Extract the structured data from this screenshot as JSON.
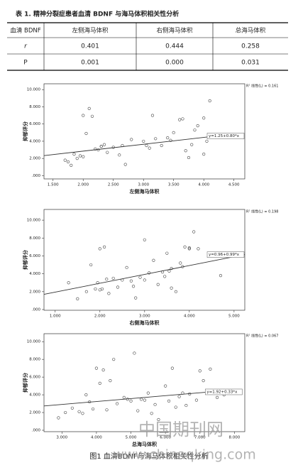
{
  "table": {
    "caption": "表 1. 精神分裂症患者血清 BDNF 与海马体积相关性分析",
    "header": [
      "血清 BDNF",
      "左侧海马体积",
      "右侧海马体积",
      "总海马体积"
    ],
    "rows": [
      [
        "r",
        "0.401",
        "0.444",
        "0.258"
      ],
      [
        "P",
        "0.001",
        "0.000",
        "0.031"
      ]
    ]
  },
  "chart_data": [
    {
      "type": "scatter",
      "ylabel": "抑郁评分",
      "xlabel": "左侧海马体积",
      "r2_label": "R² 线性(L) = 0.161",
      "fit_label": "y=1.25+0.80*x",
      "x": [
        1.8,
        1.9,
        2.0,
        2.0,
        2.1,
        1.7,
        1.85,
        2.2,
        2.3,
        2.35,
        2.4,
        2.5,
        2.6,
        2.65,
        2.7,
        2.8,
        3.0,
        3.1,
        3.15,
        3.2,
        3.3,
        3.4,
        3.5,
        3.6,
        3.7,
        3.75,
        3.8,
        3.9,
        4.0,
        4.05,
        4.1,
        1.95,
        2.05,
        2.15,
        2.3,
        3.05,
        3.45,
        3.65,
        3.85,
        4.0,
        1.75,
        2.25
      ],
      "y": [
        1.2,
        2.0,
        7.0,
        2.2,
        7.8,
        1.8,
        2.5,
        3.1,
        3.4,
        3.6,
        2.7,
        3.3,
        2.4,
        3.5,
        1.3,
        4.2,
        4.0,
        3.2,
        7.0,
        4.3,
        3.5,
        4.4,
        5.0,
        6.5,
        2.9,
        2.1,
        3.6,
        5.8,
        6.7,
        4.0,
        8.7,
        2.3,
        4.9,
        6.9,
        3.4,
        3.5,
        4.1,
        6.6,
        5.3,
        2.5,
        1.6,
        3.0
      ],
      "fit": {
        "x": [
          1.35,
          4.2
        ],
        "y": [
          2.33,
          4.61
        ]
      },
      "xlim": [
        1.35,
        4.68
      ],
      "ylim": [
        -0.38,
        10.68
      ],
      "xticks": [
        {
          "value": 1.5,
          "label": "1.500"
        },
        {
          "value": 2,
          "label": "2.000"
        },
        {
          "value": 2.5,
          "label": "2.500"
        },
        {
          "value": 3,
          "label": "3.000"
        },
        {
          "value": 3.5,
          "label": "3.500"
        },
        {
          "value": 4,
          "label": "4.000"
        },
        {
          "value": 4.5,
          "label": "4.500"
        }
      ],
      "yticks": [
        {
          "value": 0,
          "label": ".000"
        },
        {
          "value": 2,
          "label": "2.000"
        },
        {
          "value": 4,
          "label": "4.000"
        },
        {
          "value": 6,
          "label": "6.000"
        },
        {
          "value": 8,
          "label": "8.000"
        },
        {
          "value": 10,
          "label": "10.000"
        }
      ],
      "marker_color": "#444",
      "fit_color": "#333"
    },
    {
      "type": "scatter",
      "ylabel": "抑郁评分",
      "xlabel": "右侧海马体积",
      "r2_label": "R² 线性(L) = 0.198",
      "fit_label": "y=0.96+0.99*x",
      "x": [
        1.3,
        1.5,
        1.7,
        1.8,
        1.9,
        2.0,
        2.0,
        2.1,
        2.2,
        2.3,
        2.4,
        2.5,
        2.6,
        2.7,
        2.8,
        2.9,
        3.0,
        3.0,
        3.1,
        3.2,
        3.3,
        3.4,
        3.5,
        3.6,
        3.6,
        3.7,
        3.8,
        3.9,
        4.0,
        4.0,
        4.1,
        4.2,
        4.7,
        2.05,
        2.15,
        3.45,
        3.55,
        1.95,
        2.75,
        3.85
      ],
      "y": [
        3.0,
        1.2,
        2.0,
        5.0,
        2.3,
        6.8,
        2.2,
        7.0,
        1.8,
        3.5,
        2.5,
        3.3,
        4.7,
        3.2,
        1.3,
        3.6,
        3.3,
        7.8,
        4.1,
        5.5,
        2.8,
        4.2,
        6.3,
        4.6,
        2.4,
        2.0,
        5.2,
        7.0,
        6.8,
        6.9,
        8.7,
        6.8,
        3.8,
        2.3,
        3.4,
        3.7,
        4.3,
        3.0,
        2.6,
        4.8
      ],
      "fit": {
        "x": [
          0.75,
          5.24
        ],
        "y": [
          1.7,
          6.15
        ]
      },
      "xlim": [
        0.75,
        5.24
      ],
      "ylim": [
        -0.08,
        11.2
      ],
      "xticks": [
        {
          "value": 1,
          "label": "1.000"
        },
        {
          "value": 2,
          "label": "2.000"
        },
        {
          "value": 3,
          "label": "3.000"
        },
        {
          "value": 4,
          "label": "4.000"
        },
        {
          "value": 5,
          "label": "5.000"
        }
      ],
      "yticks": [
        {
          "value": 0,
          "label": ".000"
        },
        {
          "value": 2,
          "label": "2.000"
        },
        {
          "value": 4,
          "label": "4.000"
        },
        {
          "value": 6,
          "label": "6.000"
        },
        {
          "value": 8,
          "label": "8.000"
        },
        {
          "value": 10,
          "label": "10.000"
        }
      ],
      "marker_color": "#444",
      "fit_color": "#333"
    },
    {
      "type": "scatter",
      "ylabel": "抑郁评分",
      "xlabel": "总海马体积",
      "r2_label": "R² 线性(L) = 0.067",
      "fit_label": "y=1.92+0.33*x",
      "x": [
        2.9,
        3.1,
        3.3,
        3.5,
        3.7,
        3.9,
        4.0,
        4.1,
        4.2,
        4.3,
        4.5,
        4.6,
        4.8,
        5.0,
        5.1,
        5.2,
        5.3,
        5.4,
        5.5,
        5.6,
        5.8,
        6.0,
        6.1,
        6.2,
        6.3,
        6.5,
        6.7,
        6.9,
        7.1,
        7.3,
        7.5,
        7.7,
        3.8,
        4.4,
        5.7,
        6.4,
        7.0,
        3.6,
        4.9,
        6.6
      ],
      "y": [
        1.4,
        2.0,
        2.5,
        2.1,
        4.0,
        2.4,
        7.0,
        5.3,
        6.8,
        2.3,
        8.0,
        3.0,
        3.7,
        3.3,
        8.7,
        2.2,
        3.5,
        3.4,
        4.2,
        1.9,
        1.2,
        5.0,
        3.3,
        7.0,
        2.6,
        4.2,
        4.1,
        3.4,
        5.6,
        6.9,
        3.7,
        4.0,
        3.2,
        5.6,
        2.9,
        3.8,
        6.7,
        1.9,
        3.5,
        2.8
      ],
      "fit": {
        "x": [
          2.48,
          7.3
        ],
        "y": [
          2.74,
          4.33
        ]
      },
      "xlim": [
        2.48,
        8.3
      ],
      "ylim": [
        -0.16,
        10.9
      ],
      "xticks": [
        {
          "value": 3,
          "label": "3.000"
        },
        {
          "value": 4,
          "label": "4.000"
        },
        {
          "value": 5,
          "label": "5.000"
        },
        {
          "value": 6,
          "label": "6.000"
        },
        {
          "value": 7,
          "label": "7.000"
        },
        {
          "value": 8,
          "label": "8.000"
        }
      ],
      "yticks": [
        {
          "value": 0,
          "label": ".000"
        },
        {
          "value": 2,
          "label": "2.000"
        },
        {
          "value": 4,
          "label": "4.000"
        },
        {
          "value": 6,
          "label": "6.000"
        },
        {
          "value": 8,
          "label": "8.000"
        },
        {
          "value": 10,
          "label": "10.000"
        }
      ],
      "marker_color": "#444",
      "fit_color": "#333"
    }
  ],
  "figure_caption": "图1 血清BDNF与海马体积相关性分析",
  "watermark": {
    "name": "中国期刊网",
    "url": "www.chinaqking.com"
  }
}
